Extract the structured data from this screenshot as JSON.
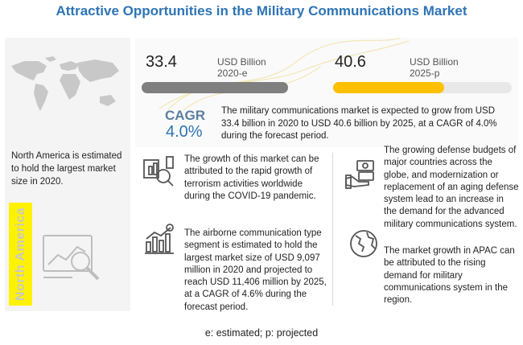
{
  "title": "Attractive Opportunities in the Military Communications Market",
  "left": {
    "region_text": "North America is estimated to hold the largest market size in 2020.",
    "region_label": "North America"
  },
  "metrics": {
    "v2020": "33.4",
    "unit2020": "USD Billion",
    "year2020": "2020-e",
    "v2025": "40.6",
    "unit2025": "USD Billion",
    "year2025": "2025-p",
    "bar_colors": {
      "gray": "#7f7f7f",
      "yellow": "#ffc000",
      "track": "#e8e8e8"
    }
  },
  "cagr": {
    "label": "CAGR",
    "value": "4.0%",
    "text": "The military communications market is expected to grow from USD 33.4 billion in 2020 to USD 40.6 billion by 2025, at a CAGR of 4.0% during the forecast period."
  },
  "blocks": {
    "growth": "The growth of this market can be attributed to the rapid growth of terrorism activities worldwide during the COVID-19 pandemic.",
    "airborne": "The airborne communication type segment is estimated to hold the largest market size of USD 9,097 million in 2020 and projected to reach USD 11,406 million by 2025, at a CAGR of 4.6% during the forecast period.",
    "defense": "The growing defense budgets of major countries across the globe, and modernization or replacement of an aging defense system lead to an increase in the demand for the advanced military communications system.",
    "apac": "The market growth in APAC can be attributed to the rising demand for military communications system in the region."
  },
  "icons": [
    "world-map-icon",
    "analytics-icon",
    "growth-chart-icon",
    "rising-chart-icon",
    "money-hand-icon",
    "globe-icon"
  ],
  "footnote": "e: estimated; p: projected"
}
